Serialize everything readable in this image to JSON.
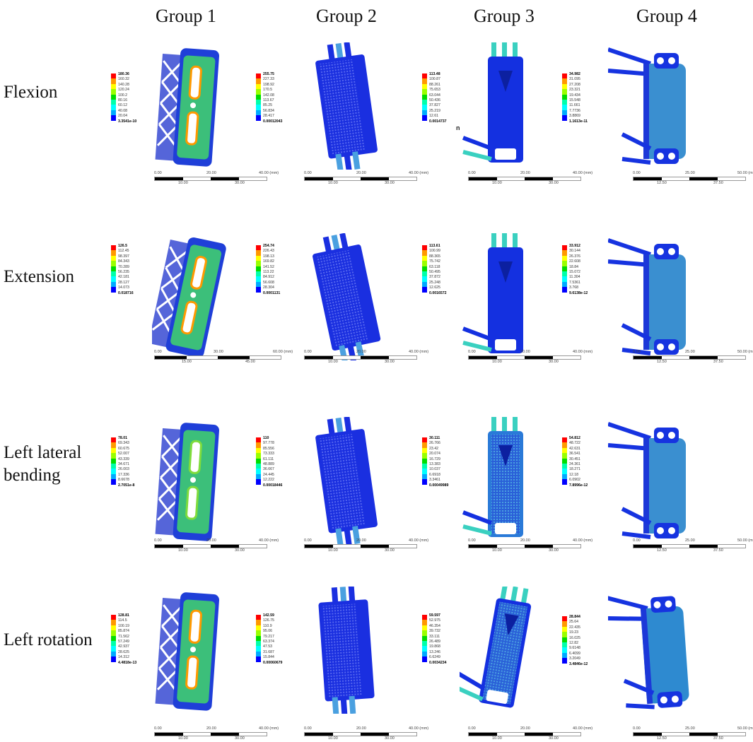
{
  "figure": {
    "columns": [
      "Group 1",
      "Group 2",
      "Group 3",
      "Group 4"
    ],
    "rows": [
      "Flexion",
      "Extension",
      "Left lateral bending",
      "Left rotation"
    ],
    "legend_colors": [
      "#ff0000",
      "#ff9900",
      "#ffff00",
      "#99ff00",
      "#00dd00",
      "#00ffaa",
      "#00ffff",
      "#00aaff",
      "#0000ff"
    ],
    "stray_mark": "n"
  },
  "panels": [
    [
      {
        "legend": [
          "180.36",
          "160.32",
          "140.28",
          "120.24",
          "100.2",
          "80.16",
          "60.12",
          "40.08",
          "20.04",
          "3.3541e-10"
        ],
        "scale": {
          "top": [
            "0.00",
            "20.00",
            "40.00 (mm)"
          ],
          "bottom": [
            "10.00",
            "30.00"
          ]
        }
      },
      {
        "legend": [
          "255.75",
          "227.33",
          "198.92",
          "170.5",
          "142.08",
          "113.67",
          "85.25",
          "56.834",
          "28.417",
          "0.00012043"
        ],
        "scale": {
          "top": [
            "0.00",
            "20.00",
            "40.00 (mm)"
          ],
          "bottom": [
            "10.00",
            "30.00"
          ]
        }
      },
      {
        "legend": [
          "113.48",
          "100.87",
          "88.261",
          "75.653",
          "63.044",
          "50.436",
          "37.827",
          "25.219",
          "12.61",
          "0.0014737"
        ],
        "scale": {
          "top": [
            "0.00",
            "20.00",
            "40.00 (mm)"
          ],
          "bottom": [
            "10.00",
            "30.00"
          ]
        }
      },
      {
        "legend": [
          "34.982",
          "31.095",
          "27.208",
          "23.321",
          "19.434",
          "15.548",
          "11.661",
          "7.7736",
          "3.8869",
          "1.1613e-11"
        ],
        "scale": {
          "top": [
            "0.00",
            "25.00",
            "50.00 (mm)"
          ],
          "bottom": [
            "12.50",
            "37.50"
          ]
        }
      }
    ],
    [
      {
        "legend": [
          "126.5",
          "112.45",
          "98.397",
          "84.343",
          "70.289",
          "56.235",
          "42.181",
          "28.127",
          "14.073",
          "0.018716"
        ],
        "scale": {
          "top": [
            "0.00",
            "30.00",
            "60.00 (mm)"
          ],
          "bottom": [
            "15.00",
            "45.00"
          ]
        }
      },
      {
        "legend": [
          "254.74",
          "226.43",
          "198.13",
          "169.82",
          "141.52",
          "113.22",
          "84.912",
          "56.608",
          "28.304",
          "0.0001131"
        ],
        "scale": {
          "top": [
            "0.00",
            "20.00",
            "40.00 (mm)"
          ],
          "bottom": [
            "10.00",
            "30.00"
          ]
        }
      },
      {
        "legend": [
          "113.61",
          "100.99",
          "88.365",
          "75.742",
          "63.118",
          "50.495",
          "37.872",
          "25.248",
          "12.625",
          "0.0016572"
        ],
        "scale": {
          "top": [
            "0.00",
            "20.00",
            "40.00 (mm)"
          ],
          "bottom": [
            "10.00",
            "30.00"
          ]
        }
      },
      {
        "legend": [
          "33.912",
          "30.144",
          "26.376",
          "22.608",
          "18.84",
          "15.072",
          "11.304",
          "7.5361",
          "3.768",
          "9.6138e-12"
        ],
        "scale": {
          "top": [
            "0.00",
            "25.00",
            "50.00 (mm)"
          ],
          "bottom": [
            "12.50",
            "37.50"
          ]
        }
      }
    ],
    [
      {
        "legend": [
          "78.01",
          "69.343",
          "60.675",
          "52.007",
          "43.339",
          "34.671",
          "26.003",
          "17.336",
          "8.6678",
          "2.7051e-8"
        ],
        "scale": {
          "top": [
            "0.00",
            "20.00",
            "40.00 (mm)"
          ],
          "bottom": [
            "10.00",
            "30.00"
          ]
        }
      },
      {
        "legend": [
          "110",
          "97.778",
          "85.556",
          "73.333",
          "61.111",
          "48.889",
          "36.667",
          "24.445",
          "12.222",
          "0.00018446"
        ],
        "scale": {
          "top": [
            "0.00",
            "20.00",
            "40.00 (mm)"
          ],
          "bottom": [
            "10.00",
            "30.00"
          ]
        }
      },
      {
        "legend": [
          "30.111",
          "26.766",
          "23.42",
          "20.074",
          "16.729",
          "13.383",
          "10.037",
          "6.6918",
          "3.3461",
          "0.00049989"
        ],
        "scale": {
          "top": [
            "0.00",
            "20.00",
            "40.00 (mm)"
          ],
          "bottom": [
            "10.00",
            "30.00"
          ]
        }
      },
      {
        "legend": [
          "54.812",
          "48.722",
          "42.631",
          "36.541",
          "30.451",
          "24.361",
          "18.271",
          "12.18",
          "6.0902",
          "7.8996e-12"
        ],
        "scale": {
          "top": [
            "0.00",
            "25.00",
            "50.00 (mm)"
          ],
          "bottom": [
            "12.50",
            "37.50"
          ]
        }
      }
    ],
    [
      {
        "legend": [
          "128.81",
          "114.5",
          "100.19",
          "85.874",
          "71.562",
          "57.249",
          "42.937",
          "28.625",
          "14.312",
          "4.4818e-13"
        ],
        "scale": {
          "top": [
            "0.00",
            "20.00",
            "40.00 (mm)"
          ],
          "bottom": [
            "10.00",
            "30.00"
          ]
        }
      },
      {
        "legend": [
          "142.59",
          "126.75",
          "110.9",
          "95.06",
          "79.217",
          "63.374",
          "47.53",
          "31.687",
          "15.844",
          "0.00060679"
        ],
        "scale": {
          "top": [
            "0.00",
            "20.00",
            "40.00 (mm)"
          ],
          "bottom": [
            "10.00",
            "30.00"
          ]
        }
      },
      {
        "legend": [
          "59.597",
          "52.975",
          "46.354",
          "39.732",
          "33.111",
          "26.489",
          "19.868",
          "13.246",
          "6.6249",
          "0.0034234"
        ],
        "scale": {
          "top": [
            "0.00",
            "20.00",
            "40.00 (mm)"
          ],
          "bottom": [
            "10.00",
            "30.00"
          ]
        }
      },
      {
        "legend": [
          "28.844",
          "25.64",
          "22.435",
          "19.23",
          "16.025",
          "12.82",
          "9.6148",
          "6.4099",
          "3.2049",
          "3.4846e-12"
        ],
        "scale": {
          "top": [
            "0.00",
            "25.00",
            "50.00 (mm)"
          ],
          "bottom": [
            "12.50",
            "37.50"
          ]
        }
      }
    ]
  ]
}
